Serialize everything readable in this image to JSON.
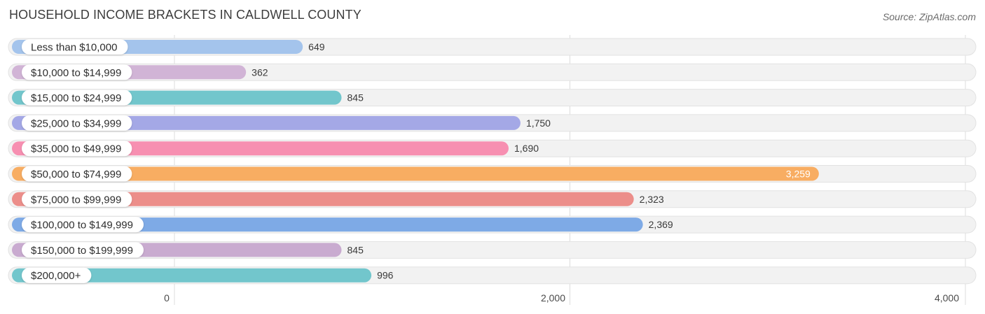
{
  "title": "HOUSEHOLD INCOME BRACKETS IN CALDWELL COUNTY",
  "source": "Source: ZipAtlas.com",
  "chart_data": {
    "type": "bar",
    "orientation": "horizontal",
    "title": "HOUSEHOLD INCOME BRACKETS IN CALDWELL COUNTY",
    "categories": [
      "Less than $10,000",
      "$10,000 to $14,999",
      "$15,000 to $24,999",
      "$25,000 to $34,999",
      "$35,000 to $49,999",
      "$50,000 to $74,999",
      "$75,000 to $99,999",
      "$100,000 to $149,999",
      "$150,000 to $199,999",
      "$200,000+"
    ],
    "values": [
      649,
      362,
      845,
      1750,
      1690,
      3259,
      2323,
      2369,
      845,
      996
    ],
    "value_labels": [
      "649",
      "362",
      "845",
      "1,750",
      "1,690",
      "3,259",
      "2,323",
      "2,369",
      "845",
      "996"
    ],
    "colors": [
      "#a4c4ec",
      "#d1b4d6",
      "#72c6cc",
      "#a4a8e6",
      "#f78fb1",
      "#f8ad62",
      "#ec8e8a",
      "#7eaae6",
      "#c9abd0",
      "#72c6cc"
    ],
    "xlim": [
      0,
      4000
    ],
    "xticks": [
      0,
      2000,
      4000
    ],
    "xtick_labels": [
      "0",
      "2,000",
      "4,000"
    ],
    "grid": true,
    "xlabel": "",
    "ylabel": ""
  }
}
